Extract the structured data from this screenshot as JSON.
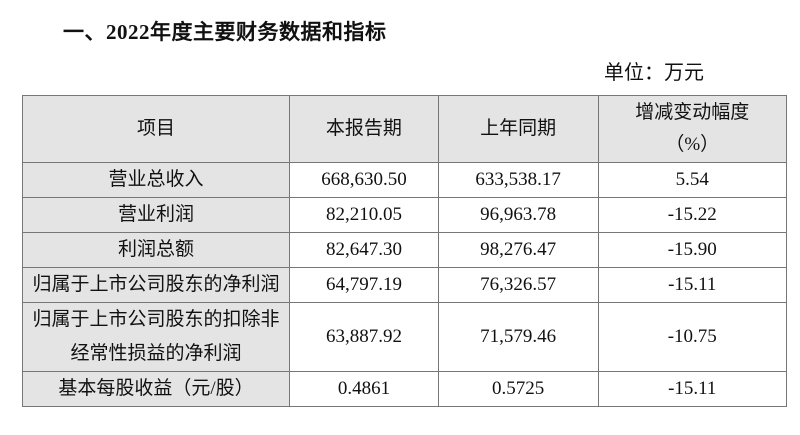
{
  "title": "一、2022年度主要财务数据和指标",
  "unit": "单位：万元",
  "table": {
    "headers": [
      "项目",
      "本报告期",
      "上年同期",
      "增减变动幅度",
      "（%）"
    ],
    "rows": [
      {
        "item": "营业总收入",
        "current": "668,630.50",
        "prior": "633,538.17",
        "change": "5.54"
      },
      {
        "item": "营业利润",
        "current": "82,210.05",
        "prior": "96,963.78",
        "change": "-15.22"
      },
      {
        "item": "利润总额",
        "current": "82,647.30",
        "prior": "98,276.47",
        "change": "-15.90"
      },
      {
        "item": "归属于上市公司股东的净利润",
        "current": "64,797.19",
        "prior": "76,326.57",
        "change": "-15.11"
      },
      {
        "item": "归属于上市公司股东的扣除非经常性损益的净利润",
        "current": "63,887.92",
        "prior": "71,579.46",
        "change": "-10.75"
      },
      {
        "item": "基本每股收益（元/股）",
        "current": "0.4861",
        "prior": "0.5725",
        "change": "-15.11"
      }
    ]
  }
}
